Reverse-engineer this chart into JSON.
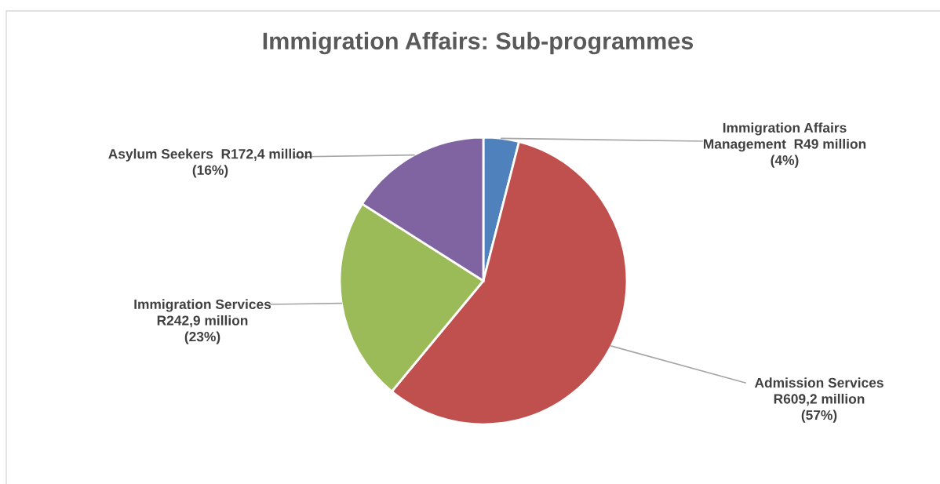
{
  "chart_data": {
    "type": "pie",
    "title": "Immigration Affairs: Sub-programmes",
    "categories": [
      "Immigration Affairs\nManagement",
      "Admission Services",
      "Immigration Services",
      "Asylum Seekers"
    ],
    "values": [
      4,
      57,
      23,
      16
    ],
    "value_labels": [
      "  R49 million\n(4%)",
      "\nR609,2 million\n(57%)",
      "\nR242,9 million\n(23%)",
      "  R172,4 million\n(16%)"
    ],
    "colors": [
      "#4f81bd",
      "#c0504d",
      "#9bbb59",
      "#8064a2"
    ],
    "legend": false
  }
}
